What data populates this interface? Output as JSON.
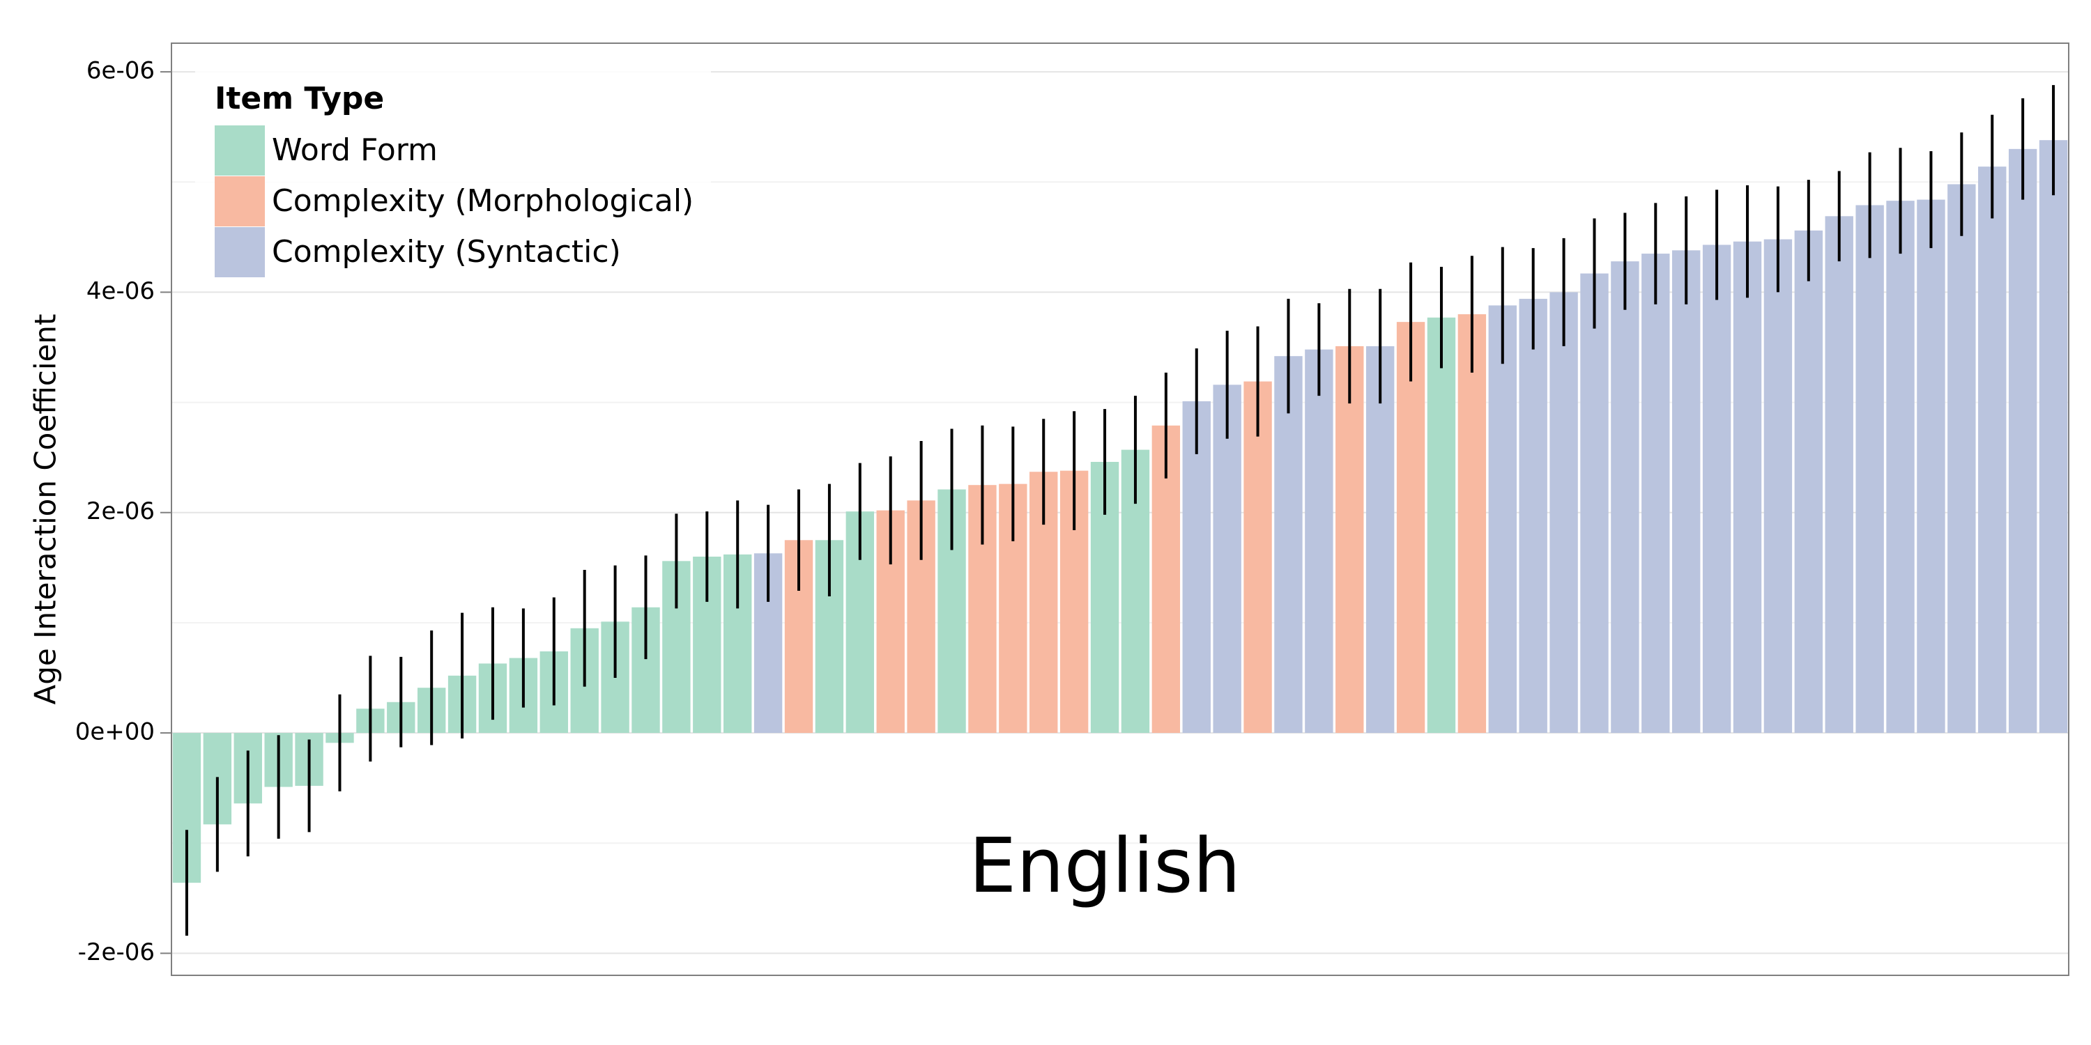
{
  "chart_data": {
    "type": "bar",
    "ylabel": "Age Interaction Coefficient",
    "annotation": "English",
    "legend_title": "Item Type",
    "legend": "top-left",
    "grid": true,
    "ylim": [
      -2.2e-06,
      6.26e-06
    ],
    "yticks": [
      {
        "value": -2e-06,
        "label": "-2e-06"
      },
      {
        "value": 0,
        "label": "0e+00"
      },
      {
        "value": 2e-06,
        "label": "2e-06"
      },
      {
        "value": 4e-06,
        "label": "4e-06"
      },
      {
        "value": 6e-06,
        "label": "6e-06"
      }
    ],
    "series": [
      {
        "name": "Word Form",
        "color": "#a9dcc8",
        "values": [
          -1.36e-06,
          -8.3e-07,
          -6.4e-07,
          -4.9e-07,
          -4.8e-07,
          -9e-08,
          2.2e-07,
          2.8e-07,
          4.1e-07,
          5.2e-07,
          6.3e-07,
          6.8e-07,
          7.4e-07,
          9.5e-07,
          1.01e-06,
          1.14e-06,
          1.56e-06,
          1.6e-06,
          1.62e-06,
          null,
          null,
          1.75e-06,
          2.01e-06,
          null,
          null,
          2.21e-06,
          null,
          null,
          null,
          null,
          2.46e-06,
          2.57e-06,
          null,
          null,
          null,
          null,
          null,
          null,
          null,
          null,
          null,
          3.77e-06,
          null,
          null,
          null,
          null,
          null,
          null,
          null,
          null,
          null,
          null,
          null,
          null,
          null,
          null,
          null,
          null,
          null,
          null,
          null,
          null
        ],
        "errors": [
          4.8e-07,
          4.3e-07,
          4.8e-07,
          4.7e-07,
          4.2e-07,
          4.4e-07,
          4.8e-07,
          4.1e-07,
          5.2e-07,
          5.7e-07,
          5.1e-07,
          4.5e-07,
          4.9e-07,
          5.3e-07,
          5.1e-07,
          4.7e-07,
          4.3e-07,
          4.1e-07,
          4.9e-07,
          null,
          null,
          5.1e-07,
          4.4e-07,
          null,
          null,
          5.5e-07,
          null,
          null,
          null,
          null,
          4.8e-07,
          4.9e-07,
          null,
          null,
          null,
          null,
          null,
          null,
          null,
          null,
          null,
          4.6e-07,
          null,
          null,
          null,
          null,
          null,
          null,
          null,
          null,
          null,
          null,
          null,
          null,
          null,
          null,
          null,
          null,
          null,
          null,
          null,
          null
        ]
      },
      {
        "name": "Complexity (Morphological)",
        "color": "#f8b9a1",
        "values": [
          null,
          null,
          null,
          null,
          null,
          null,
          null,
          null,
          null,
          null,
          null,
          null,
          null,
          null,
          null,
          null,
          null,
          null,
          null,
          null,
          1.75e-06,
          null,
          null,
          2.02e-06,
          2.11e-06,
          null,
          2.25e-06,
          2.26e-06,
          2.37e-06,
          2.38e-06,
          null,
          null,
          2.79e-06,
          null,
          null,
          3.19e-06,
          null,
          null,
          3.51e-06,
          null,
          3.73e-06,
          null,
          3.8e-06,
          null,
          null,
          null,
          null,
          null,
          null,
          null,
          null,
          null,
          null,
          null,
          null,
          null,
          null,
          null,
          null,
          null,
          null,
          null
        ],
        "errors": [
          null,
          null,
          null,
          null,
          null,
          null,
          null,
          null,
          null,
          null,
          null,
          null,
          null,
          null,
          null,
          null,
          null,
          null,
          null,
          null,
          4.6e-07,
          null,
          null,
          4.9e-07,
          5.4e-07,
          null,
          5.4e-07,
          5.2e-07,
          4.8e-07,
          5.4e-07,
          null,
          null,
          4.8e-07,
          null,
          null,
          5e-07,
          null,
          null,
          5.2e-07,
          null,
          5.4e-07,
          null,
          5.3e-07,
          null,
          null,
          null,
          null,
          null,
          null,
          null,
          null,
          null,
          null,
          null,
          null,
          null,
          null,
          null,
          null,
          null,
          null,
          null
        ]
      },
      {
        "name": "Complexity (Syntactic)",
        "color": "#bac4de",
        "values": [
          null,
          null,
          null,
          null,
          null,
          null,
          null,
          null,
          null,
          null,
          null,
          null,
          null,
          null,
          null,
          null,
          null,
          null,
          null,
          1.63e-06,
          null,
          null,
          null,
          null,
          null,
          null,
          null,
          null,
          null,
          null,
          null,
          null,
          null,
          3.01e-06,
          3.16e-06,
          null,
          3.42e-06,
          3.48e-06,
          null,
          3.51e-06,
          null,
          null,
          null,
          3.88e-06,
          3.94e-06,
          4e-06,
          4.17e-06,
          4.28e-06,
          4.35e-06,
          4.38e-06,
          4.43e-06,
          4.46e-06,
          4.48e-06,
          4.56e-06,
          4.69e-06,
          4.79e-06,
          4.83e-06,
          4.84e-06,
          4.98e-06,
          5.14e-06,
          5.3e-06,
          5.38e-06
        ],
        "errors": [
          null,
          null,
          null,
          null,
          null,
          null,
          null,
          null,
          null,
          null,
          null,
          null,
          null,
          null,
          null,
          null,
          null,
          null,
          null,
          4.4e-07,
          null,
          null,
          null,
          null,
          null,
          null,
          null,
          null,
          null,
          null,
          null,
          null,
          null,
          4.8e-07,
          4.9e-07,
          null,
          5.2e-07,
          4.2e-07,
          null,
          5.2e-07,
          null,
          null,
          null,
          5.3e-07,
          4.6e-07,
          4.9e-07,
          5e-07,
          4.4e-07,
          4.6e-07,
          4.9e-07,
          5e-07,
          5.1e-07,
          4.8e-07,
          4.6e-07,
          4.1e-07,
          4.8e-07,
          4.8e-07,
          4.4e-07,
          4.7e-07,
          4.7e-07,
          4.6e-07,
          5e-07
        ]
      }
    ]
  }
}
